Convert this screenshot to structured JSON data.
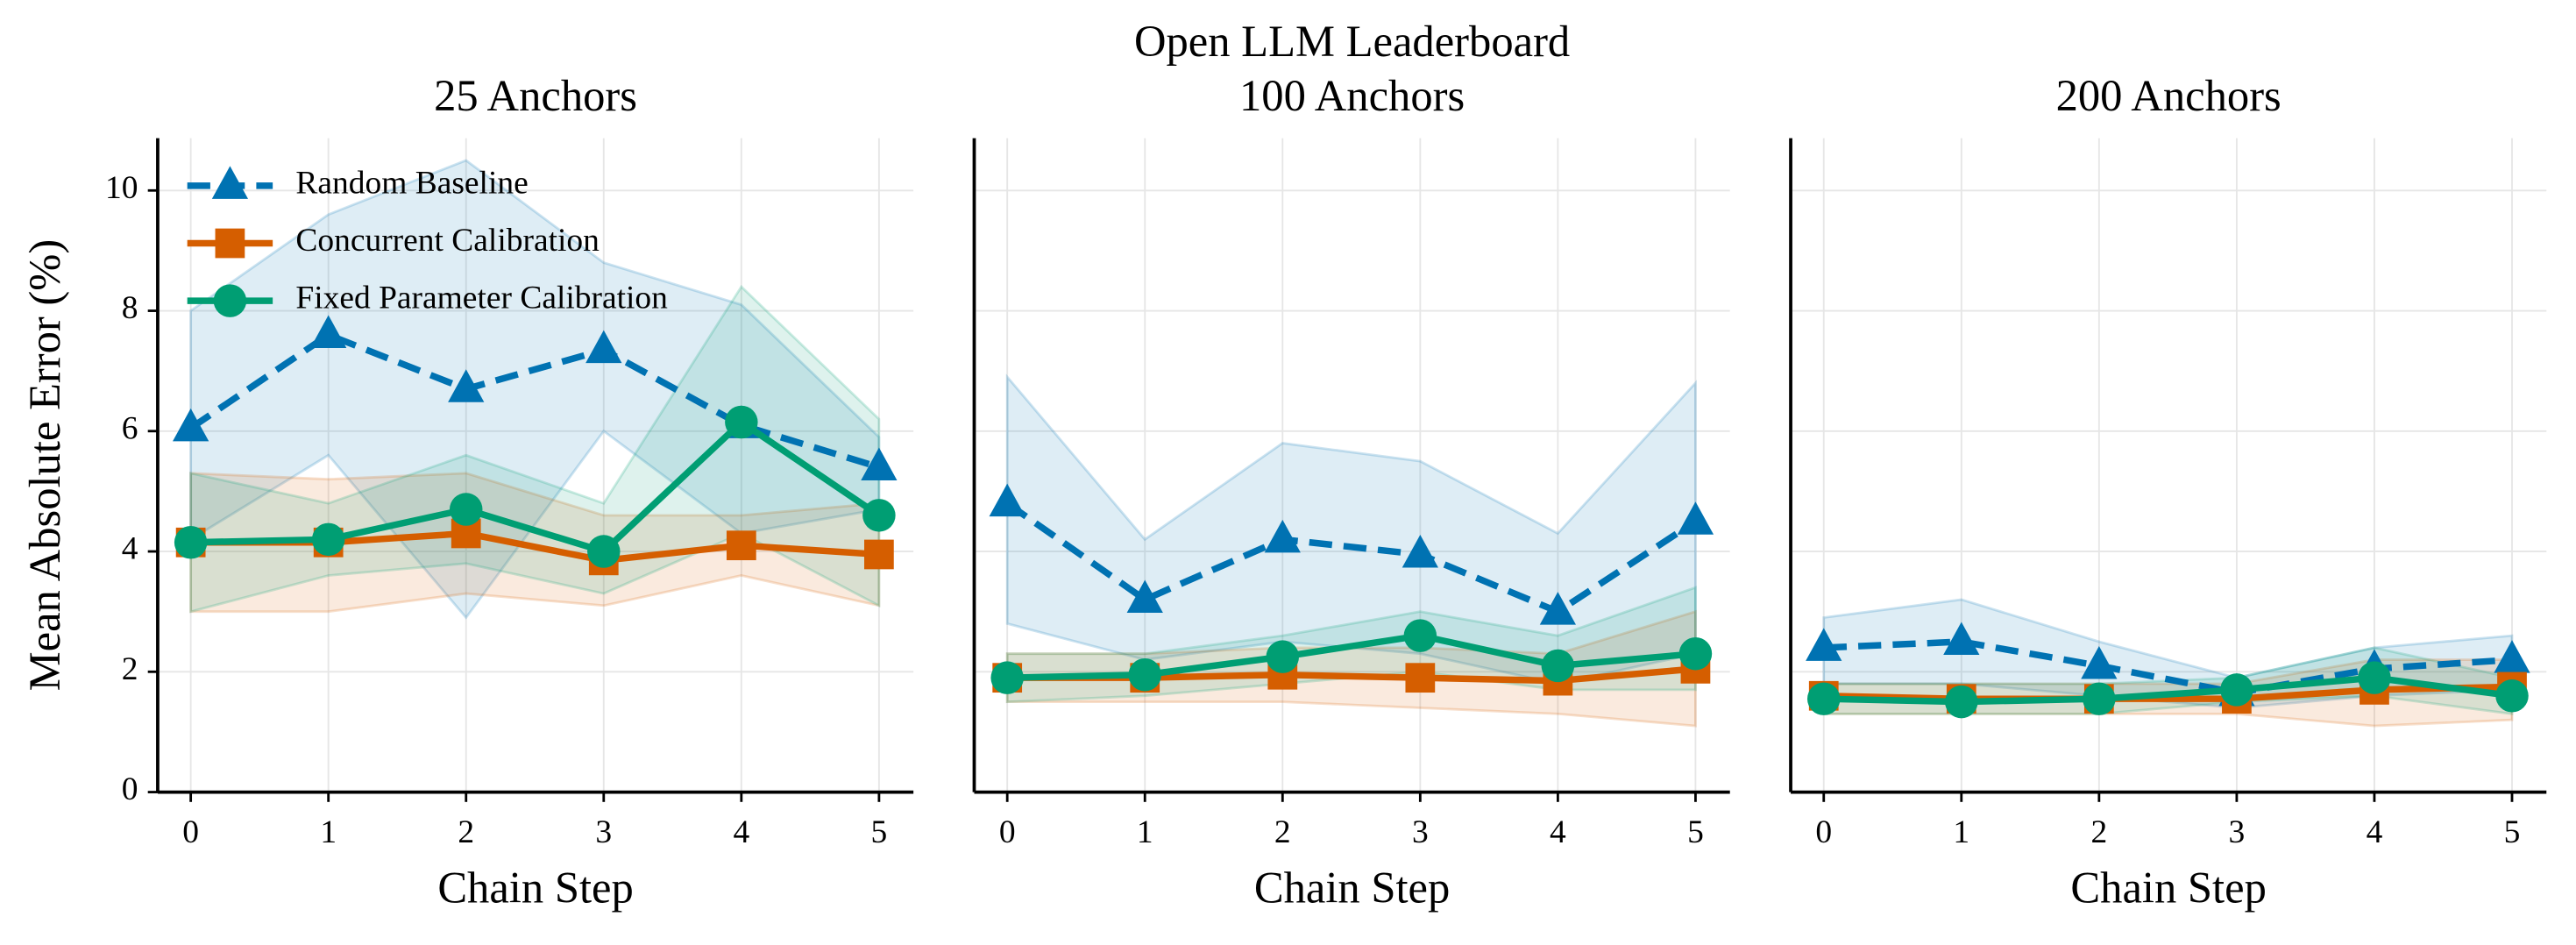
{
  "title": "Open LLM Leaderboard",
  "chart_data": [
    {
      "type": "line",
      "title": "25 Anchors",
      "xlabel": "Chain Step",
      "ylabel": "Mean Absolute Error (%)",
      "x": [
        0,
        1,
        2,
        3,
        4,
        5
      ],
      "xlim": [
        -0.24,
        5.25
      ],
      "xticks": [
        0,
        1,
        2,
        3,
        4,
        5
      ],
      "ylim": [
        0,
        10.87
      ],
      "yticks": [
        0,
        2,
        4,
        6,
        8,
        10
      ],
      "grid": true,
      "legend": "upper left",
      "series": [
        {
          "name": "Random Baseline",
          "color": "#0072b2",
          "marker": "triangle",
          "linestyle": "dashed",
          "values": [
            6.05,
            7.6,
            6.7,
            7.35,
            6.1,
            5.4
          ],
          "lower": [
            4.2,
            5.6,
            2.9,
            6.0,
            4.3,
            4.7
          ],
          "upper": [
            8.0,
            9.6,
            10.5,
            8.8,
            8.1,
            5.9
          ]
        },
        {
          "name": "Concurrent Calibration",
          "color": "#d55e00",
          "marker": "square",
          "linestyle": "solid",
          "values": [
            4.15,
            4.15,
            4.3,
            3.85,
            4.1,
            3.95
          ],
          "lower": [
            3.0,
            3.0,
            3.3,
            3.1,
            3.6,
            3.1
          ],
          "upper": [
            5.3,
            5.2,
            5.3,
            4.6,
            4.6,
            4.8
          ]
        },
        {
          "name": "Fixed Parameter Calibration",
          "color": "#009e73",
          "marker": "circle",
          "linestyle": "solid",
          "values": [
            4.15,
            4.2,
            4.7,
            4.0,
            6.15,
            4.6
          ],
          "lower": [
            3.0,
            3.6,
            3.8,
            3.3,
            4.3,
            3.1
          ],
          "upper": [
            5.3,
            4.8,
            5.6,
            4.8,
            8.4,
            6.2
          ]
        }
      ]
    },
    {
      "type": "line",
      "title": "100 Anchors",
      "xlabel": "Chain Step",
      "x": [
        0,
        1,
        2,
        3,
        4,
        5
      ],
      "xlim": [
        -0.24,
        5.25
      ],
      "xticks": [
        0,
        1,
        2,
        3,
        4,
        5
      ],
      "sharey": true,
      "grid": true,
      "series": [
        {
          "color": "#0072b2",
          "marker": "triangle",
          "linestyle": "dashed",
          "values": [
            4.8,
            3.2,
            4.2,
            3.95,
            3.0,
            4.5
          ],
          "lower": [
            2.8,
            2.2,
            2.5,
            2.3,
            1.8,
            2.3
          ],
          "upper": [
            6.9,
            4.2,
            5.8,
            5.5,
            4.3,
            6.8
          ]
        },
        {
          "color": "#d55e00",
          "marker": "square",
          "linestyle": "solid",
          "values": [
            1.9,
            1.9,
            1.95,
            1.9,
            1.85,
            2.05
          ],
          "lower": [
            1.5,
            1.5,
            1.5,
            1.4,
            1.3,
            1.1
          ],
          "upper": [
            2.3,
            2.3,
            2.4,
            2.4,
            2.3,
            3.0
          ]
        },
        {
          "color": "#009e73",
          "marker": "circle",
          "linestyle": "solid",
          "values": [
            1.9,
            1.95,
            2.25,
            2.6,
            2.1,
            2.3
          ],
          "lower": [
            1.5,
            1.6,
            1.8,
            2.0,
            1.7,
            1.7
          ],
          "upper": [
            2.3,
            2.3,
            2.6,
            3.0,
            2.6,
            3.4
          ]
        }
      ]
    },
    {
      "type": "line",
      "title": "200 Anchors",
      "xlabel": "Chain Step",
      "x": [
        0,
        1,
        2,
        3,
        4,
        5
      ],
      "xlim": [
        -0.24,
        5.25
      ],
      "xticks": [
        0,
        1,
        2,
        3,
        4,
        5
      ],
      "sharey": true,
      "grid": true,
      "series": [
        {
          "color": "#0072b2",
          "marker": "triangle",
          "linestyle": "dashed",
          "values": [
            2.4,
            2.5,
            2.1,
            1.65,
            2.05,
            2.2
          ],
          "lower": [
            1.8,
            1.8,
            1.6,
            1.4,
            1.6,
            1.7
          ],
          "upper": [
            2.9,
            3.2,
            2.5,
            1.9,
            2.4,
            2.6
          ]
        },
        {
          "color": "#d55e00",
          "marker": "square",
          "linestyle": "solid",
          "values": [
            1.6,
            1.55,
            1.55,
            1.55,
            1.7,
            1.75
          ],
          "lower": [
            1.3,
            1.3,
            1.3,
            1.3,
            1.1,
            1.2
          ],
          "upper": [
            1.8,
            1.8,
            1.8,
            1.8,
            2.2,
            2.2
          ]
        },
        {
          "color": "#009e73",
          "marker": "circle",
          "linestyle": "solid",
          "values": [
            1.55,
            1.5,
            1.55,
            1.7,
            1.9,
            1.6
          ],
          "lower": [
            1.3,
            1.3,
            1.3,
            1.5,
            1.6,
            1.3
          ],
          "upper": [
            1.8,
            1.8,
            1.8,
            1.9,
            2.4,
            1.9
          ]
        }
      ]
    }
  ]
}
